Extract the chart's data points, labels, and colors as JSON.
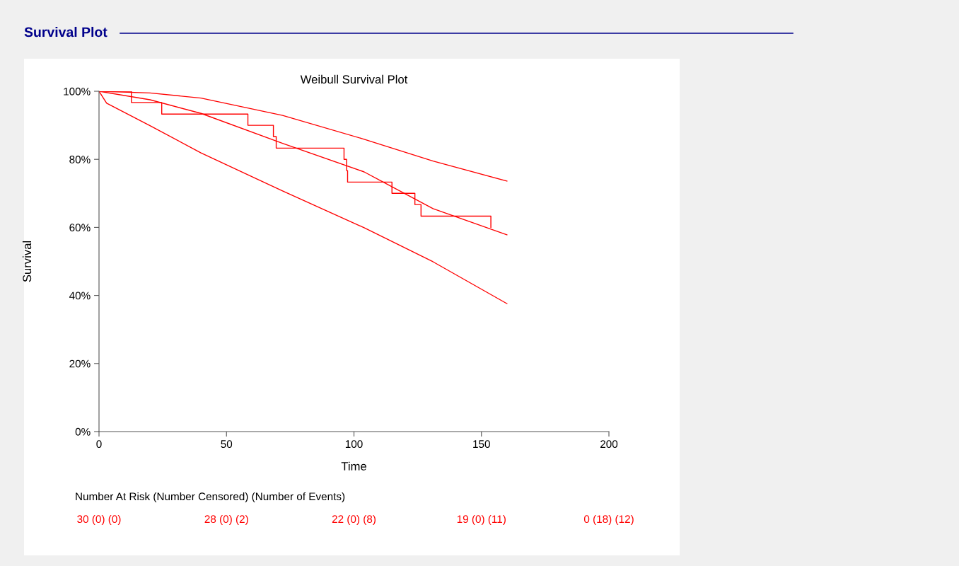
{
  "chart_data": {
    "type": "line",
    "title": "Weibull Survival Plot",
    "xlabel": "Time",
    "ylabel": "Survival",
    "xlim": [
      0,
      200
    ],
    "xticks": [
      0,
      50,
      100,
      150,
      200
    ],
    "ylim": [
      0,
      100
    ],
    "yticks": [
      {
        "value": 0,
        "label": "0%"
      },
      {
        "value": 20,
        "label": "20%"
      },
      {
        "value": 40,
        "label": "40%"
      },
      {
        "value": 60,
        "label": "60%"
      },
      {
        "value": 80,
        "label": "80%"
      },
      {
        "value": 100,
        "label": "100%"
      }
    ],
    "grid": false,
    "marker": "none",
    "line_style": "solid",
    "series": [
      {
        "type": "step",
        "color": "#ff0000",
        "x": [
          0,
          12.7,
          24.6,
          58.4,
          68.4,
          69.5,
          96.1,
          97.1,
          97.5,
          114.9,
          123.9,
          126.3,
          153.7
        ],
        "values": [
          100,
          96.7,
          93.3,
          90,
          86.7,
          83.3,
          80,
          76.7,
          73.3,
          70,
          66.7,
          63.3,
          60
        ]
      },
      {
        "color": "#ff0000",
        "x": [
          0,
          20,
          40,
          72,
          104,
          131,
          160
        ],
        "values": [
          100,
          99.5,
          98,
          92.9,
          85.9,
          79.5,
          73.6
        ]
      },
      {
        "color": "#ff0000",
        "x": [
          0,
          20,
          40,
          72,
          104,
          131,
          160
        ],
        "values": [
          100,
          97.5,
          93.5,
          84.7,
          76.3,
          65.5,
          57.8
        ]
      },
      {
        "color": "#ff0000",
        "x": [
          0,
          3,
          20,
          40,
          72,
          104,
          131,
          160
        ],
        "values": [
          100,
          96.5,
          89.9,
          81.9,
          70.7,
          59.9,
          49.9,
          37.6
        ]
      }
    ],
    "annotations": [
      "Survival Plot",
      "Number At Risk (Number Censored) (Number of Events)",
      "30 (0) (0)",
      "28 (0) (2)",
      "22 (0) (8)",
      "19 (0) (11)",
      "0 (18) (12)"
    ]
  }
}
